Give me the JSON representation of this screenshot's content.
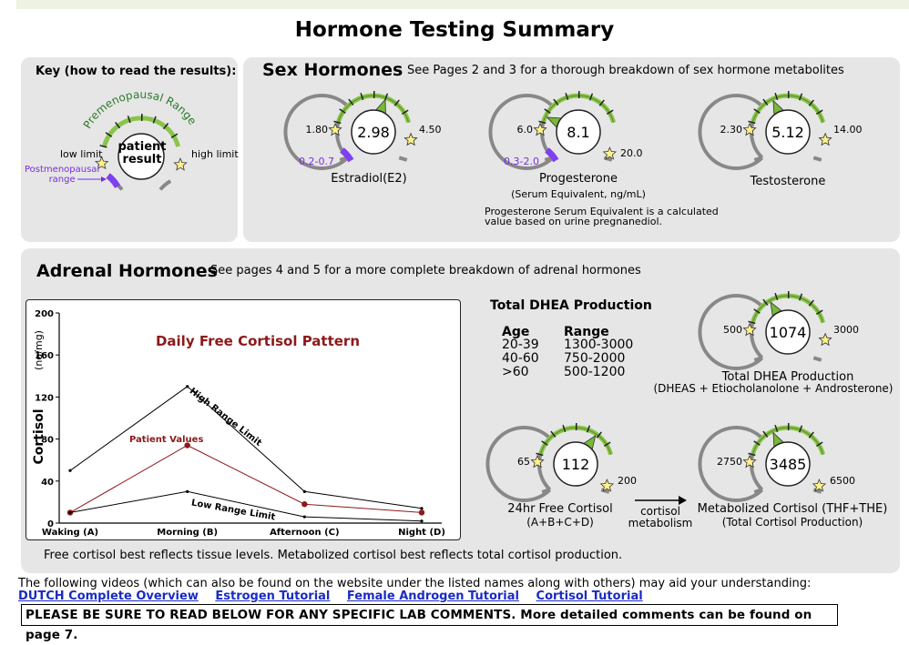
{
  "title": "Hormone Testing Summary",
  "key": {
    "heading": "Key (how to read the results):",
    "range_label": "Premenopausal Range",
    "low_limit": "low limit",
    "high_limit": "high limit",
    "center": [
      "patient",
      "result"
    ],
    "post_label": [
      "Postmenopausal",
      "range"
    ]
  },
  "sex": {
    "heading": "Sex Hormones",
    "sub": "See Pages 2 and 3 for a thorough breakdown of sex hormone metabolites",
    "gauges": [
      {
        "value": "2.98",
        "low": "1.80",
        "high": "4.50",
        "post": "0.2-0.7",
        "name": "Estradiol(E2)"
      },
      {
        "value": "8.1",
        "low": "6.0",
        "high": "20.0",
        "post": "0.3-2.0",
        "name": "Progesterone",
        "name2": "(Serum Equivalent, ng/mL)"
      },
      {
        "value": "5.12",
        "low": "2.30",
        "high": "14.00",
        "name": "Testosterone"
      }
    ],
    "note": [
      "Progesterone Serum Equivalent is a calculated",
      "value based on urine pregnanediol."
    ]
  },
  "adrenal": {
    "heading": "Adrenal Hormones",
    "sub": "See pages 4 and 5 for a more complete breakdown of adrenal hormones",
    "footer": "Free cortisol best reflects tissue levels. Metabolized cortisol best reflects total cortisol production.",
    "dhea": {
      "heading": "Total DHEA Production",
      "col_age": "Age",
      "col_range": "Range",
      "rows": [
        {
          "age": "20-39",
          "range": "1300-3000"
        },
        {
          "age": "40-60",
          "range": "750-2000"
        },
        {
          "age": ">60",
          "range": "500-1200"
        }
      ]
    },
    "gauges": {
      "dhea": {
        "value": "1074",
        "low": "500",
        "high": "3000",
        "name": "Total DHEA Production",
        "name2": "(DHEAS + Etiocholanolone + Androsterone)"
      },
      "free": {
        "value": "112",
        "low": "65",
        "high": "200",
        "name": "24hr Free Cortisol",
        "name2": "(A+B+C+D)"
      },
      "metab": {
        "value": "3485",
        "low": "2750",
        "high": "6500",
        "name": "Metabolized Cortisol (THF+THE)",
        "name2": "(Total Cortisol Production)"
      }
    },
    "arrow_label": [
      "cortisol",
      "metabolism"
    ]
  },
  "chart_data": {
    "type": "line",
    "title": "Daily Free Cortisol Pattern",
    "ylabel": "Cortisol",
    "yunit": "(ng/mg)",
    "categories": [
      "Waking (A)",
      "Morning (B)",
      "Afternoon (C)",
      "Night (D)"
    ],
    "yticks": [
      0,
      40,
      80,
      120,
      160,
      200
    ],
    "ylim": [
      0,
      200
    ],
    "series": [
      {
        "name": "High Range Limit",
        "values": [
          50,
          130,
          30,
          14
        ],
        "color": "#000000"
      },
      {
        "name": "Patient Values",
        "values": [
          10,
          74,
          18,
          10
        ],
        "color": "#8b1a1a"
      },
      {
        "name": "Low Range Limit",
        "values": [
          10,
          30,
          6,
          2
        ],
        "color": "#000000"
      }
    ]
  },
  "videos": {
    "intro": "The following videos (which can also be found on the website under the listed names along with others) may aid your understanding:",
    "links": [
      "DUTCH Complete Overview",
      "Estrogen Tutorial",
      "Female Androgen Tutorial",
      "Cortisol Tutorial"
    ]
  },
  "notice": "PLEASE BE SURE TO READ BELOW FOR ANY SPECIFIC LAB COMMENTS. More detailed comments can be found on page 7."
}
